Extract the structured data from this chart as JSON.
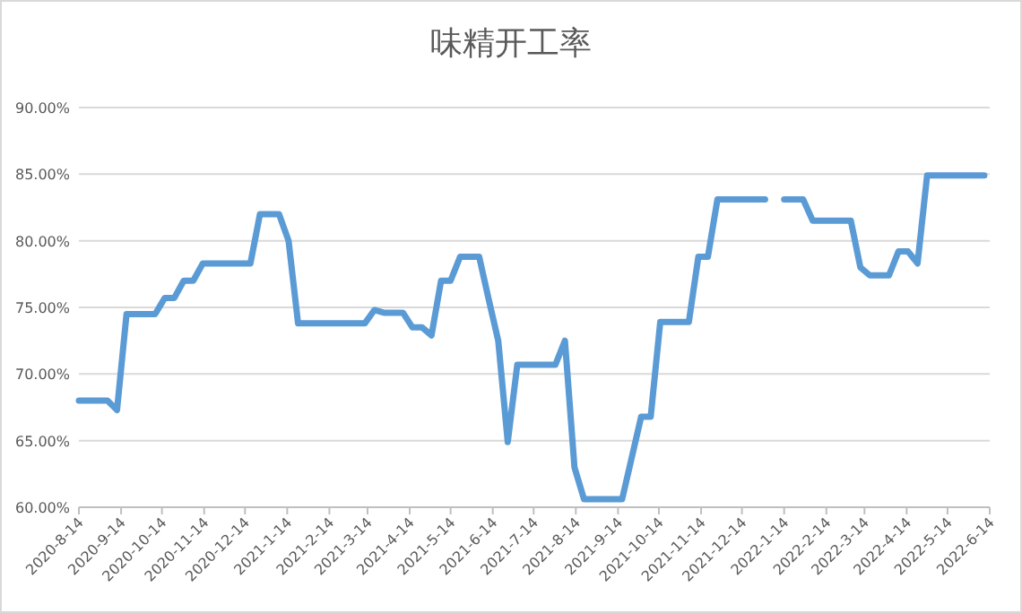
{
  "chart_data": {
    "type": "line",
    "title": "味精开工率",
    "x": [
      "2020-08-14",
      "2020-08-21",
      "2020-08-28",
      "2020-09-04",
      "2020-09-11",
      "2020-09-18",
      "2020-09-25",
      "2020-10-02",
      "2020-10-09",
      "2020-10-16",
      "2020-10-23",
      "2020-10-30",
      "2020-11-06",
      "2020-11-13",
      "2020-11-20",
      "2020-11-27",
      "2020-12-04",
      "2020-12-11",
      "2020-12-18",
      "2020-12-25",
      "2021-01-01",
      "2021-01-08",
      "2021-01-15",
      "2021-01-22",
      "2021-01-29",
      "2021-02-05",
      "2021-02-12",
      "2021-02-19",
      "2021-02-26",
      "2021-03-05",
      "2021-03-12",
      "2021-03-19",
      "2021-03-26",
      "2021-04-02",
      "2021-04-09",
      "2021-04-16",
      "2021-04-23",
      "2021-04-30",
      "2021-05-07",
      "2021-05-14",
      "2021-05-21",
      "2021-05-28",
      "2021-06-04",
      "2021-06-11",
      "2021-06-18",
      "2021-06-25",
      "2021-07-02",
      "2021-07-09",
      "2021-07-16",
      "2021-07-23",
      "2021-07-30",
      "2021-08-06",
      "2021-08-13",
      "2021-08-20",
      "2021-08-27",
      "2021-09-03",
      "2021-09-10",
      "2021-09-17",
      "2021-10-01",
      "2021-10-08",
      "2021-10-15",
      "2021-10-22",
      "2021-10-29",
      "2021-11-05",
      "2021-11-12",
      "2021-11-19",
      "2021-11-26",
      "2021-12-03",
      "2021-12-10",
      "2021-12-17",
      "2021-12-24",
      "2021-12-31",
      "2022-01-07",
      "2022-01-14",
      "2022-01-21",
      "2022-01-28",
      "2022-02-04",
      "2022-02-11",
      "2022-02-18",
      "2022-02-25",
      "2022-03-04",
      "2022-03-11",
      "2022-03-18",
      "2022-03-25",
      "2022-04-01",
      "2022-04-08",
      "2022-04-15",
      "2022-04-22",
      "2022-04-29",
      "2022-05-06",
      "2022-05-13",
      "2022-05-20",
      "2022-05-27",
      "2022-06-03",
      "2022-06-10"
    ],
    "series": [
      {
        "color": "#5b9bd5",
        "values": [
          68.0,
          68.0,
          68.0,
          68.0,
          67.3,
          74.5,
          74.5,
          74.5,
          74.5,
          75.7,
          75.7,
          77.0,
          77.0,
          78.3,
          78.3,
          78.3,
          78.3,
          78.3,
          78.3,
          82.0,
          82.0,
          82.0,
          80.0,
          73.8,
          73.8,
          73.8,
          73.8,
          73.8,
          73.8,
          73.8,
          73.8,
          74.8,
          74.6,
          74.6,
          74.6,
          73.5,
          73.5,
          72.9,
          77.0,
          77.0,
          78.8,
          78.8,
          78.8,
          75.6,
          72.5,
          64.9,
          70.7,
          70.7,
          70.7,
          70.7,
          70.7,
          72.5,
          63.0,
          60.6,
          60.6,
          60.6,
          60.6,
          60.6,
          66.8,
          66.8,
          73.9,
          73.9,
          73.9,
          73.9,
          78.8,
          78.8,
          83.1,
          83.1,
          83.1,
          83.1,
          83.1,
          83.1,
          null,
          83.1,
          83.1,
          83.1,
          81.5,
          81.5,
          81.5,
          81.5,
          81.5,
          78.0,
          77.4,
          77.4,
          77.4,
          79.2,
          79.2,
          78.3,
          84.9,
          84.9,
          84.9,
          84.9,
          84.9,
          84.9,
          84.9
        ]
      }
    ],
    "xlim": [
      "2020-08-14",
      "2022-06-14"
    ],
    "xticks": [
      {
        "value": "2020-08-14",
        "label": "2020-8-14"
      },
      {
        "value": "2020-09-14",
        "label": "2020-9-14"
      },
      {
        "value": "2020-10-14",
        "label": "2020-10-14"
      },
      {
        "value": "2020-11-14",
        "label": "2020-11-14"
      },
      {
        "value": "2020-12-14",
        "label": "2020-12-14"
      },
      {
        "value": "2021-01-14",
        "label": "2021-1-14"
      },
      {
        "value": "2021-02-14",
        "label": "2021-2-14"
      },
      {
        "value": "2021-03-14",
        "label": "2021-3-14"
      },
      {
        "value": "2021-04-14",
        "label": "2021-4-14"
      },
      {
        "value": "2021-05-14",
        "label": "2021-5-14"
      },
      {
        "value": "2021-06-14",
        "label": "2021-6-14"
      },
      {
        "value": "2021-07-14",
        "label": "2021-7-14"
      },
      {
        "value": "2021-08-14",
        "label": "2021-8-14"
      },
      {
        "value": "2021-09-14",
        "label": "2021-9-14"
      },
      {
        "value": "2021-10-14",
        "label": "2021-10-14"
      },
      {
        "value": "2021-11-14",
        "label": "2021-11-14"
      },
      {
        "value": "2021-12-14",
        "label": "2021-12-14"
      },
      {
        "value": "2022-01-14",
        "label": "2022-1-14"
      },
      {
        "value": "2022-02-14",
        "label": "2022-2-14"
      },
      {
        "value": "2022-03-14",
        "label": "2022-3-14"
      },
      {
        "value": "2022-04-14",
        "label": "2022-4-14"
      },
      {
        "value": "2022-05-14",
        "label": "2022-5-14"
      },
      {
        "value": "2022-06-14",
        "label": "2022-6-14"
      }
    ],
    "ylim": [
      60,
      90
    ],
    "yticks": [
      {
        "value": 60,
        "label": "60.00%"
      },
      {
        "value": 65,
        "label": "65.00%"
      },
      {
        "value": 70,
        "label": "70.00%"
      },
      {
        "value": 75,
        "label": "75.00%"
      },
      {
        "value": 80,
        "label": "80.00%"
      },
      {
        "value": 85,
        "label": "85.00%"
      },
      {
        "value": 90,
        "label": "90.00%"
      }
    ],
    "grid": "y",
    "line_style": "solid"
  }
}
